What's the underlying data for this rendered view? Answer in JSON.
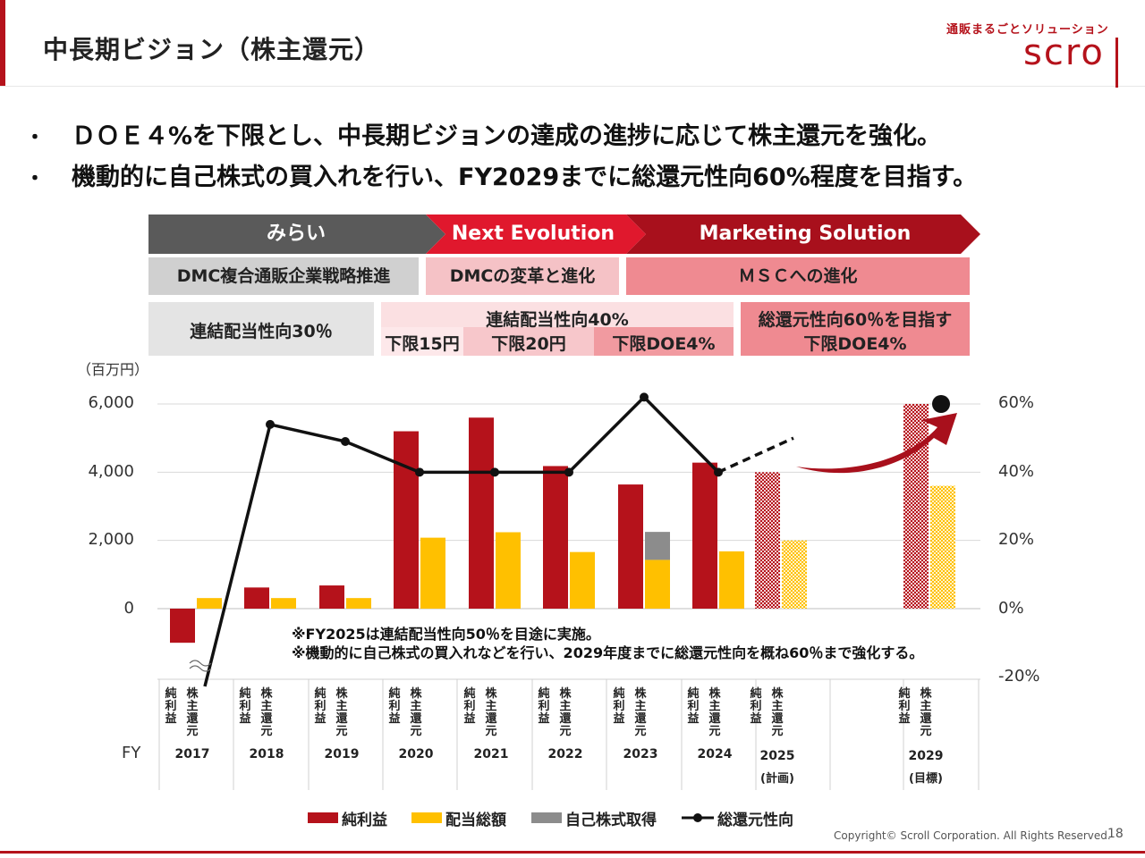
{
  "header": {
    "title": "中長期ビジョン（株主還元）",
    "logo_tagline": "通販まるごとソリューション",
    "logo_text": "scro"
  },
  "bullets": [
    "ＤＯＥ４%を下限とし、中長期ビジョンの達成の進捗に応じて株主還元を強化。",
    "機動的に自己株式の買入れを行い、FY2029までに総還元性向60%程度を目指す。"
  ],
  "bullet_mark": "・",
  "phases": {
    "chevrons": [
      "みらい",
      "Next Evolution",
      "Marketing Solution"
    ],
    "strategies": [
      "DMC複合通販企業戦略推進",
      "DMCの変革と進化",
      "ＭＳＣへの進化"
    ],
    "policy_1": "連結配当性向30％",
    "policy_2_title": "連結配当性向40%",
    "policy_2_sub": [
      "下限15円",
      "下限20円",
      "下限DOE4%"
    ],
    "policy_3_title": "総還元性向60％を目指す",
    "policy_3_sub": "下限DOE4%"
  },
  "colors": {
    "brand_red": "#b5121b",
    "net_income": "#b5121b",
    "dividend": "#ffc000",
    "buyback": "#8c8c8c",
    "payout_line": "#111111"
  },
  "chart_data": {
    "type": "bar",
    "unit_label": "（百万円）",
    "x_title": "FY",
    "categories": [
      "2017",
      "2018",
      "2019",
      "2020",
      "2021",
      "2022",
      "2023",
      "2024",
      "2025",
      "2029"
    ],
    "category_sublabels": [
      "",
      "",
      "",
      "",
      "",
      "",
      "",
      "",
      "(計画)",
      "(目標)"
    ],
    "bar_labels": [
      "純利益",
      "株主還元"
    ],
    "ylim_left": [
      -2000,
      6000
    ],
    "ylim_right": [
      -20,
      60
    ],
    "yticks_left": [
      "6,000",
      "4,000",
      "2,000",
      "0"
    ],
    "yticks_right": [
      "60%",
      "40%",
      "20%",
      "0%",
      "-20%"
    ],
    "series": [
      {
        "name": "純利益",
        "axis": "left",
        "values": [
          -1000,
          620,
          680,
          5200,
          5600,
          4180,
          3640,
          4280,
          4000,
          6000
        ]
      },
      {
        "name": "配当総額",
        "axis": "left",
        "values": [
          310,
          310,
          310,
          2080,
          2240,
          1660,
          1430,
          1680,
          2000,
          3600
        ]
      },
      {
        "name": "自己株式取得",
        "axis": "left",
        "values": [
          0,
          0,
          0,
          0,
          0,
          0,
          820,
          0,
          0,
          0
        ]
      },
      {
        "name": "総還元性向",
        "axis": "right",
        "type": "line",
        "values": [
          -25,
          54,
          49,
          40,
          40,
          40,
          62,
          40,
          50,
          60
        ]
      }
    ],
    "projected_categories": [
      "2025",
      "2029"
    ],
    "notes": [
      "※FY2025は連結配当性向50％を目途に実施。",
      "※機動的に自己株式の買入れなどを行い、2029年度までに総還元性向を概ね60％まで強化する。"
    ],
    "legend_position": "bottom"
  },
  "footer": {
    "copyright": "Copyright© Scroll Corporation. All Rights Reserved.",
    "page_number": "18"
  }
}
